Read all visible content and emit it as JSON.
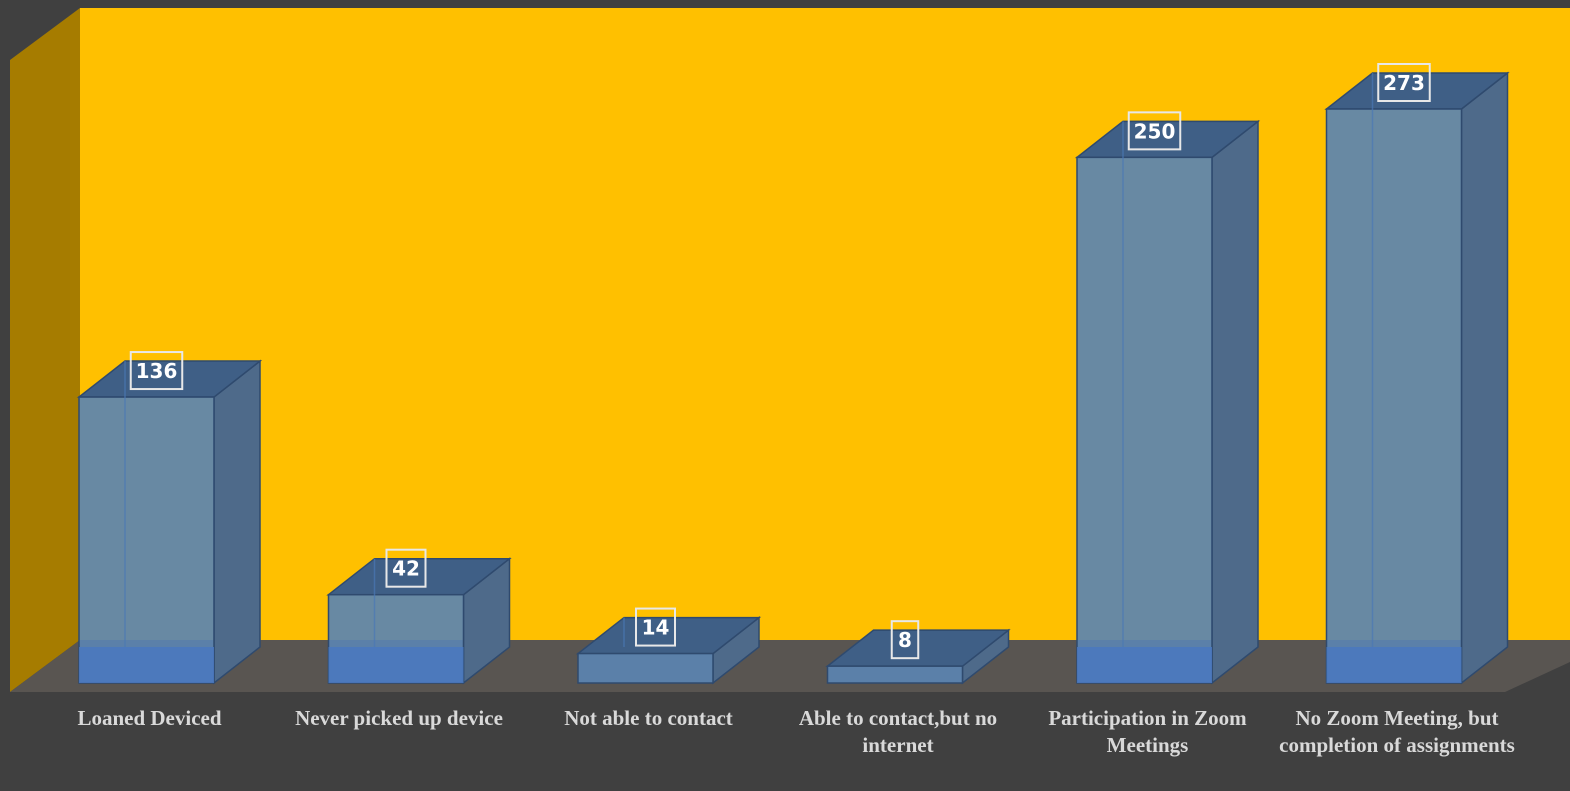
{
  "chart_data": {
    "type": "bar",
    "style": "3d-column",
    "title": "",
    "xlabel": "",
    "ylabel": "",
    "categories": [
      "Loaned Deviced",
      "Never picked up device",
      "Not able to contact",
      "Able to contact,but no internet",
      "Participation in Zoom Meetings",
      "No Zoom Meeting, but completion of assignments"
    ],
    "values": [
      136,
      42,
      14,
      8,
      250,
      273
    ],
    "data_labels": [
      "136",
      "42",
      "14",
      "8",
      "250",
      "273"
    ],
    "ylim": [
      0,
      273
    ],
    "grid": false,
    "legend": "none",
    "colors": {
      "background": "#404040",
      "back_wall": "#FFC000",
      "side_wall": "#A67C00",
      "floor": "#595551",
      "bar_front": "#5b84b1",
      "bar_top": "#3f5f86",
      "bar_side": "#4e6a8a",
      "label_text": "#d9d9d9"
    }
  }
}
